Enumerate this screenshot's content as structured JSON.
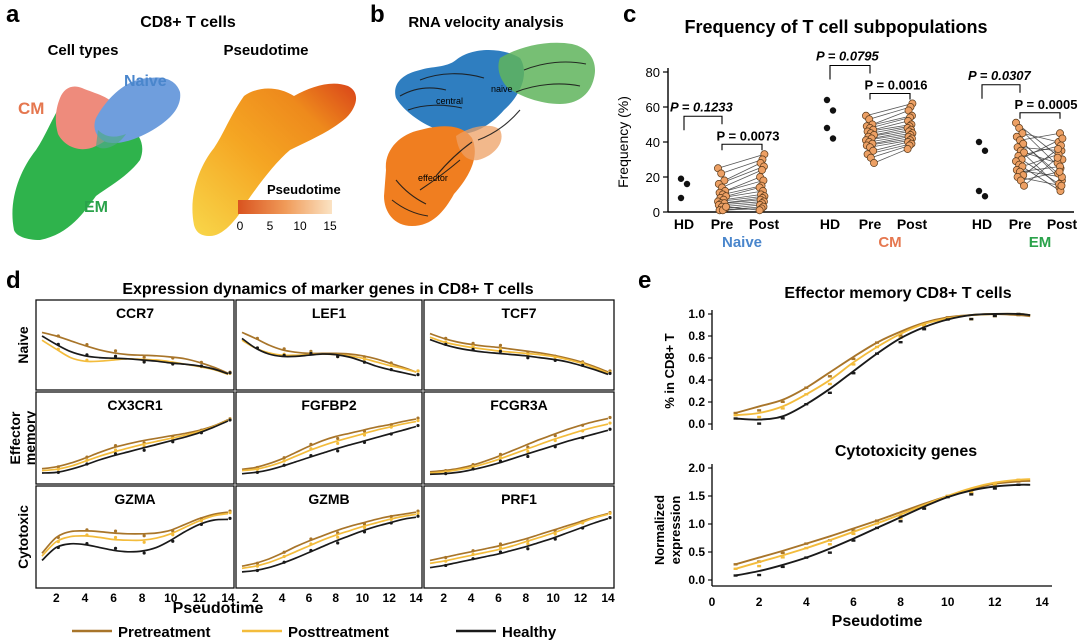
{
  "colors": {
    "pre": "#a8752a",
    "post": "#f3bc3c",
    "healthy": "#1a1a1a",
    "cm": "#ee8b7c",
    "naive": "#6f9edd",
    "em": "#2fb34c",
    "cm_label": "#e5774f",
    "naive_label": "#4a86cc",
    "em_label": "#2aa24a",
    "umap_orange": "#f39a1b",
    "umap_red": "#e5531a",
    "umap_yellow": "#f8d74a",
    "velo_blue": "#2f7ec0",
    "velo_orange": "#f07e20",
    "velo_green": "#5fb45c",
    "dot_orange": "#eda064"
  },
  "panels": {
    "a": {
      "letter": "a",
      "title": "CD8+ T cells",
      "subtitle_left": "Cell types",
      "subtitle_right": "Pseudotime",
      "labels": {
        "cm": "CM",
        "naive": "Naive",
        "em": "EM"
      },
      "colorbar": {
        "title": "Pseudotime",
        "ticks": [
          "0",
          "5",
          "10",
          "15"
        ]
      }
    },
    "b": {
      "letter": "b",
      "title": "RNA velocity analysis",
      "labels": {
        "central": "central",
        "naive": "naive",
        "effector": "effector"
      }
    },
    "c": {
      "letter": "c",
      "title": "Frequency of T cell subpopulations"
    },
    "d": {
      "letter": "d",
      "title": "Expression dynamics of marker genes in CD8+ T cells",
      "row_labels": [
        "Naive",
        "Effector memory",
        "Cytotoxic"
      ],
      "xlabel": "Pseudotime"
    },
    "e": {
      "letter": "e",
      "title_top": "Effector memory CD8+ T cells",
      "title_bottom": "Cytotoxicity genes"
    }
  },
  "legend": [
    {
      "name": "Pretreatment",
      "color": "#a8752a"
    },
    {
      "name": "Posttreatment",
      "color": "#f3bc3c"
    },
    {
      "name": "Healthy",
      "color": "#1a1a1a"
    }
  ],
  "chart_data": [
    {
      "id": "c-frequency",
      "type": "scatter",
      "title": "Frequency of T cell subpopulations",
      "ylabel": "Frequency (%)",
      "ylim": [
        0,
        80
      ],
      "yticks": [
        0,
        20,
        40,
        60,
        80
      ],
      "groups": [
        {
          "name": "Naive",
          "color": "#4a86cc",
          "hd_label": "HD",
          "pre_label": "Pre",
          "post_label": "Post",
          "hd": [
            19,
            16,
            8
          ],
          "pairs": [
            [
              25,
              33
            ],
            [
              22,
              30
            ],
            [
              18,
              28
            ],
            [
              16,
              26
            ],
            [
              14,
              24
            ],
            [
              12,
              20
            ],
            [
              11,
              18
            ],
            [
              10,
              15
            ],
            [
              9,
              14
            ],
            [
              8,
              12
            ],
            [
              7,
              10
            ],
            [
              6,
              9
            ],
            [
              5,
              8
            ],
            [
              5,
              7
            ],
            [
              4,
              6
            ],
            [
              3,
              5
            ],
            [
              2,
              4
            ],
            [
              1,
              3
            ],
            [
              1,
              2
            ],
            [
              3,
              1
            ]
          ],
          "p_outer": "P = 0.1233",
          "p_inner": "P = 0.0073"
        },
        {
          "name": "CM",
          "color": "#e5774f",
          "hd_label": "HD",
          "pre_label": "Pre",
          "post_label": "Post",
          "hd": [
            64,
            58,
            48,
            42
          ],
          "pairs": [
            [
              55,
              62
            ],
            [
              53,
              60
            ],
            [
              50,
              58
            ],
            [
              49,
              55
            ],
            [
              48,
              54
            ],
            [
              47,
              52
            ],
            [
              46,
              50
            ],
            [
              45,
              49
            ],
            [
              44,
              48
            ],
            [
              43,
              47
            ],
            [
              42,
              46
            ],
            [
              41,
              45
            ],
            [
              40,
              44
            ],
            [
              39,
              43
            ],
            [
              38,
              42
            ],
            [
              37,
              41
            ],
            [
              35,
              40
            ],
            [
              33,
              39
            ],
            [
              31,
              38
            ],
            [
              28,
              36
            ]
          ],
          "p_outer": "P = 0.0795",
          "p_inner": "P = 0.0016"
        },
        {
          "name": "EM",
          "color": "#2aa24a",
          "hd_label": "HD",
          "pre_label": "Pre",
          "post_label": "Post",
          "hd": [
            40,
            35,
            12,
            9
          ],
          "pairs": [
            [
              51,
              30
            ],
            [
              48,
              25
            ],
            [
              45,
              40
            ],
            [
              43,
              18
            ],
            [
              41,
              45
            ],
            [
              39,
              22
            ],
            [
              37,
              35
            ],
            [
              35,
              14
            ],
            [
              34,
              28
            ],
            [
              32,
              38
            ],
            [
              30,
              16
            ],
            [
              29,
              42
            ],
            [
              27,
              12
            ],
            [
              26,
              33
            ],
            [
              24,
              20
            ],
            [
              23,
              26
            ],
            [
              21,
              36
            ],
            [
              20,
              15
            ],
            [
              18,
              23
            ],
            [
              15,
              31
            ]
          ],
          "p_outer": "P = 0.0307",
          "p_inner": "P = 0.0005"
        }
      ]
    },
    {
      "id": "d-marker-genes",
      "type": "line",
      "title": "Expression dynamics of marker genes in CD8+ T cells",
      "xlabel": "Pseudotime",
      "xticks": [
        2,
        4,
        6,
        8,
        10,
        12,
        14
      ],
      "x": [
        1,
        2,
        3,
        4,
        5,
        6,
        7,
        8,
        9,
        10,
        11,
        12,
        13,
        14
      ],
      "genes": [
        {
          "name": "CCR7",
          "row": "Naive",
          "pre": [
            0.86,
            0.8,
            0.72,
            0.64,
            0.57,
            0.52,
            0.49,
            0.48,
            0.47,
            0.45,
            0.42,
            0.36,
            0.28,
            0.18
          ],
          "post": [
            0.73,
            0.58,
            0.44,
            0.38,
            0.38,
            0.4,
            0.42,
            0.41,
            0.4,
            0.37,
            0.33,
            0.29,
            0.24,
            0.16
          ],
          "healthy": [
            0.8,
            0.66,
            0.54,
            0.47,
            0.44,
            0.43,
            0.42,
            0.4,
            0.38,
            0.35,
            0.33,
            0.3,
            0.25,
            0.17
          ]
        },
        {
          "name": "LEF1",
          "row": "Naive",
          "pre": [
            0.86,
            0.76,
            0.65,
            0.57,
            0.53,
            0.51,
            0.51,
            0.51,
            0.5,
            0.47,
            0.42,
            0.35,
            0.28,
            0.2
          ],
          "post": [
            0.73,
            0.6,
            0.52,
            0.48,
            0.48,
            0.49,
            0.5,
            0.49,
            0.47,
            0.43,
            0.37,
            0.31,
            0.26,
            0.2
          ],
          "healthy": [
            0.76,
            0.6,
            0.5,
            0.46,
            0.46,
            0.48,
            0.5,
            0.49,
            0.45,
            0.38,
            0.3,
            0.24,
            0.19,
            0.14
          ]
        },
        {
          "name": "TCF7",
          "row": "Naive",
          "pre": [
            0.84,
            0.76,
            0.7,
            0.66,
            0.63,
            0.61,
            0.58,
            0.55,
            0.52,
            0.48,
            0.43,
            0.37,
            0.29,
            0.2
          ],
          "post": [
            0.78,
            0.7,
            0.65,
            0.61,
            0.58,
            0.55,
            0.53,
            0.51,
            0.49,
            0.46,
            0.41,
            0.35,
            0.27,
            0.18
          ],
          "healthy": [
            0.74,
            0.66,
            0.6,
            0.56,
            0.53,
            0.51,
            0.49,
            0.47,
            0.44,
            0.41,
            0.37,
            0.31,
            0.24,
            0.16
          ]
        },
        {
          "name": "CX3CR1",
          "row": "Effector memory",
          "pre": [
            0.15,
            0.18,
            0.24,
            0.32,
            0.41,
            0.49,
            0.55,
            0.6,
            0.64,
            0.68,
            0.72,
            0.77,
            0.84,
            0.94
          ],
          "post": [
            0.12,
            0.14,
            0.19,
            0.27,
            0.35,
            0.42,
            0.48,
            0.54,
            0.59,
            0.64,
            0.69,
            0.75,
            0.83,
            0.93
          ],
          "healthy": [
            0.08,
            0.09,
            0.14,
            0.21,
            0.29,
            0.36,
            0.42,
            0.48,
            0.54,
            0.6,
            0.66,
            0.73,
            0.82,
            0.92
          ]
        },
        {
          "name": "FGFBP2",
          "row": "Effector memory",
          "pre": [
            0.14,
            0.17,
            0.23,
            0.31,
            0.41,
            0.51,
            0.6,
            0.67,
            0.72,
            0.77,
            0.82,
            0.86,
            0.91,
            0.95
          ],
          "post": [
            0.12,
            0.14,
            0.19,
            0.26,
            0.35,
            0.44,
            0.52,
            0.59,
            0.65,
            0.71,
            0.77,
            0.82,
            0.87,
            0.91
          ],
          "healthy": [
            0.07,
            0.09,
            0.13,
            0.19,
            0.26,
            0.33,
            0.4,
            0.47,
            0.53,
            0.59,
            0.65,
            0.71,
            0.77,
            0.83
          ]
        },
        {
          "name": "FCGR3A",
          "row": "Effector memory",
          "pre": [
            0.1,
            0.12,
            0.15,
            0.2,
            0.27,
            0.35,
            0.44,
            0.53,
            0.62,
            0.7,
            0.78,
            0.85,
            0.91,
            0.96
          ],
          "post": [
            0.08,
            0.1,
            0.13,
            0.17,
            0.23,
            0.3,
            0.38,
            0.46,
            0.54,
            0.62,
            0.69,
            0.76,
            0.82,
            0.87
          ],
          "healthy": [
            0.06,
            0.07,
            0.09,
            0.13,
            0.18,
            0.24,
            0.31,
            0.38,
            0.45,
            0.52,
            0.59,
            0.65,
            0.71,
            0.77
          ]
        },
        {
          "name": "GZMA",
          "row": "Cytotoxic",
          "pre": [
            0.4,
            0.62,
            0.7,
            0.71,
            0.7,
            0.68,
            0.67,
            0.67,
            0.68,
            0.72,
            0.8,
            0.88,
            0.94,
            0.97
          ],
          "post": [
            0.36,
            0.56,
            0.63,
            0.64,
            0.62,
            0.59,
            0.58,
            0.58,
            0.61,
            0.67,
            0.76,
            0.85,
            0.92,
            0.95
          ],
          "healthy": [
            0.3,
            0.48,
            0.53,
            0.52,
            0.48,
            0.44,
            0.42,
            0.43,
            0.48,
            0.58,
            0.7,
            0.8,
            0.86,
            0.87
          ]
        },
        {
          "name": "GZMB",
          "row": "Cytotoxic",
          "pre": [
            0.22,
            0.26,
            0.32,
            0.4,
            0.49,
            0.57,
            0.64,
            0.71,
            0.77,
            0.82,
            0.87,
            0.91,
            0.94,
            0.97
          ],
          "post": [
            0.19,
            0.22,
            0.27,
            0.34,
            0.42,
            0.5,
            0.58,
            0.65,
            0.71,
            0.77,
            0.82,
            0.87,
            0.91,
            0.94
          ],
          "healthy": [
            0.14,
            0.16,
            0.2,
            0.26,
            0.33,
            0.41,
            0.49,
            0.57,
            0.64,
            0.71,
            0.77,
            0.82,
            0.87,
            0.9
          ]
        },
        {
          "name": "PRF1",
          "row": "Cytotoxic",
          "pre": [
            0.3,
            0.34,
            0.38,
            0.42,
            0.46,
            0.5,
            0.55,
            0.6,
            0.66,
            0.72,
            0.78,
            0.84,
            0.9,
            0.95
          ],
          "post": [
            0.26,
            0.29,
            0.33,
            0.37,
            0.41,
            0.45,
            0.5,
            0.56,
            0.62,
            0.68,
            0.75,
            0.82,
            0.89,
            0.94
          ],
          "healthy": [
            0.2,
            0.23,
            0.27,
            0.31,
            0.35,
            0.39,
            0.44,
            0.49,
            0.55,
            0.61,
            0.68,
            0.75,
            0.82,
            0.88
          ]
        }
      ]
    },
    {
      "id": "e-effector-memory",
      "type": "line",
      "title": "Effector memory CD8+ T cells",
      "ylabel": "% in CD8+ T",
      "ylim": [
        0,
        1.0
      ],
      "yticks": [
        0.0,
        0.2,
        0.4,
        0.6,
        0.8,
        1.0
      ],
      "xlim": [
        0,
        14
      ],
      "x": [
        1,
        2,
        3,
        4,
        5,
        6,
        7,
        8,
        9,
        10,
        11,
        12,
        13,
        13.5
      ],
      "pre": [
        0.1,
        0.16,
        0.22,
        0.33,
        0.47,
        0.61,
        0.74,
        0.84,
        0.92,
        0.97,
        0.99,
        1.0,
        0.99,
        0.98
      ],
      "post": [
        0.08,
        0.1,
        0.16,
        0.27,
        0.4,
        0.56,
        0.7,
        0.82,
        0.91,
        0.96,
        0.99,
        1.0,
        1.0,
        0.99
      ],
      "healthy": [
        0.05,
        0.04,
        0.07,
        0.18,
        0.32,
        0.48,
        0.64,
        0.78,
        0.88,
        0.95,
        0.99,
        1.0,
        1.0,
        0.99
      ]
    },
    {
      "id": "e-cytotoxicity",
      "type": "line",
      "title": "Cytotoxicity genes",
      "ylabel": "Normalized expression",
      "xlabel": "Pseudotime",
      "ylim": [
        0,
        2.0
      ],
      "yticks": [
        0.0,
        0.5,
        1.0,
        1.5,
        2.0
      ],
      "xlim": [
        0,
        14
      ],
      "xticks": [
        0,
        2,
        4,
        6,
        8,
        10,
        12,
        14
      ],
      "x": [
        1,
        2,
        3,
        4,
        5,
        6,
        7,
        8,
        9,
        10,
        11,
        12,
        13,
        13.5
      ],
      "pre": [
        0.28,
        0.4,
        0.52,
        0.65,
        0.78,
        0.92,
        1.06,
        1.21,
        1.36,
        1.5,
        1.62,
        1.72,
        1.76,
        1.77
      ],
      "post": [
        0.2,
        0.32,
        0.44,
        0.57,
        0.71,
        0.86,
        1.01,
        1.17,
        1.34,
        1.5,
        1.64,
        1.74,
        1.79,
        1.8
      ],
      "healthy": [
        0.08,
        0.16,
        0.27,
        0.4,
        0.56,
        0.74,
        0.93,
        1.12,
        1.31,
        1.48,
        1.6,
        1.67,
        1.7,
        1.7
      ]
    }
  ]
}
